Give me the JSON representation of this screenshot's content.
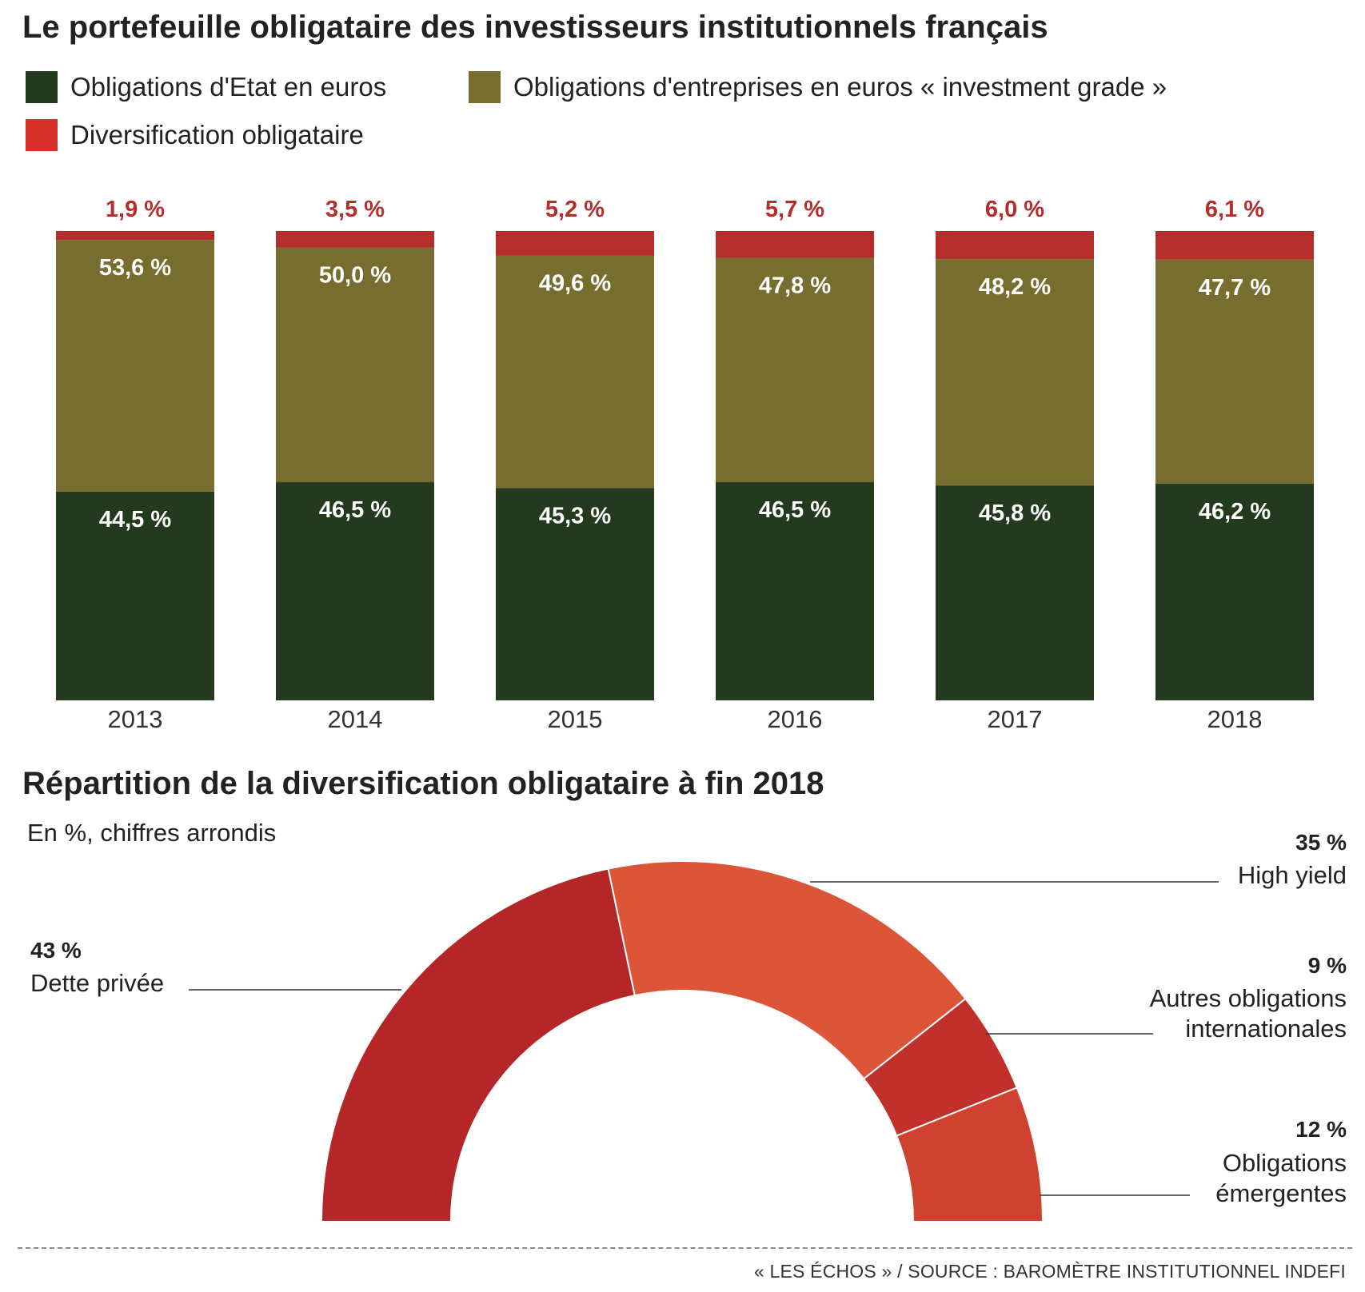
{
  "title": "Le portefeuille obligataire des investisseurs institutionnels français",
  "legend": [
    {
      "label": "Obligations d'Etat en euros",
      "color": "#233a1e"
    },
    {
      "label": "Obligations d'entreprises en euros « investment grade »",
      "color": "#776d2e"
    },
    {
      "label": "Diversification obligataire",
      "color": "#d7312b"
    }
  ],
  "chart_data": [
    {
      "type": "bar",
      "stacked": true,
      "categories": [
        "2013",
        "2014",
        "2015",
        "2016",
        "2017",
        "2018"
      ],
      "series": [
        {
          "name": "Obligations d'Etat en euros",
          "color": "#233a1e",
          "values": [
            44.5,
            46.5,
            45.3,
            46.5,
            45.8,
            46.2
          ],
          "labels": [
            "44,5 %",
            "46,5 %",
            "45,3 %",
            "46,5 %",
            "45,8 %",
            "46,2 %"
          ]
        },
        {
          "name": "Obligations d'entreprises en euros « investment grade »",
          "color": "#776d2e",
          "values": [
            53.6,
            50.0,
            49.6,
            47.8,
            48.2,
            47.7
          ],
          "labels": [
            "53,6 %",
            "50,0 %",
            "49,6 %",
            "47,8 %",
            "48,2 %",
            "47,7 %"
          ]
        },
        {
          "name": "Diversification obligataire",
          "color": "#b52e2c",
          "values": [
            1.9,
            3.5,
            5.2,
            5.7,
            6.0,
            6.1
          ],
          "labels": [
            "1,9 %",
            "3,5 %",
            "5,2 %",
            "5,7 %",
            "6,0 %",
            "6,1 %"
          ]
        }
      ],
      "ylim": [
        0,
        100
      ]
    },
    {
      "type": "pie",
      "variant": "half-donut",
      "title": "Répartition de la diversification obligataire à fin 2018",
      "subtitle": "En %, chiffres arrondis",
      "slices": [
        {
          "label": "Dette privée",
          "value": 43,
          "value_label": "43 %",
          "color": "#b52629"
        },
        {
          "label": "High yield",
          "value": 35,
          "value_label": "35 %",
          "color": "#dc5538"
        },
        {
          "label": "Autres obligations internationales",
          "value": 9,
          "value_label": "9 %",
          "color": "#c1302a"
        },
        {
          "label": "Obligations émergentes",
          "value": 12,
          "value_label": "12 %",
          "color": "#cf4230"
        }
      ]
    }
  ],
  "footer": "« LES ÉCHOS » / SOURCE : BAROMÈTRE INSTITUTIONNEL INDEFI"
}
